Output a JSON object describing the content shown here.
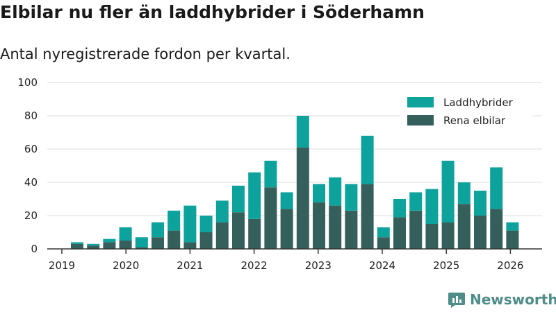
{
  "header": {
    "title": "Elbilar nu fler än laddhybrider i Söderhamn",
    "subtitle": "Antal nyregistrerade fordon per kvartal."
  },
  "brand": {
    "name": "Newsworthy"
  },
  "colors": {
    "laddhybrider": "#0ea29c",
    "rena_elbilar": "#355f5b",
    "axis": "#333333",
    "grid": "#dddddd",
    "brand": "#4f8d89"
  },
  "chart_data": {
    "type": "bar",
    "stacked": true,
    "title": "Elbilar nu fler än laddhybrider i Söderhamn",
    "subtitle": "Antal nyregistrerade fordon per kvartal.",
    "xlabel": "",
    "ylabel": "",
    "ylim": [
      0,
      100
    ],
    "yticks": [
      0,
      20,
      40,
      60,
      80,
      100
    ],
    "xticks": [
      "2019",
      "2020",
      "2021",
      "2022",
      "2023",
      "2024",
      "2025",
      "2026"
    ],
    "legend_position": "top-right",
    "categories": [
      "2019 Q2",
      "2019 Q3",
      "2019 Q4",
      "2020 Q1",
      "2020 Q2",
      "2020 Q3",
      "2020 Q4",
      "2021 Q1",
      "2021 Q2",
      "2021 Q3",
      "2021 Q4",
      "2022 Q1",
      "2022 Q2",
      "2022 Q3",
      "2022 Q4",
      "2023 Q1",
      "2023 Q2",
      "2023 Q3",
      "2023 Q4",
      "2024 Q1",
      "2024 Q2",
      "2024 Q3",
      "2024 Q4",
      "2025 Q1",
      "2025 Q2",
      "2025 Q3",
      "2025 Q4",
      "2026 Q1"
    ],
    "series": [
      {
        "name": "Rena elbilar",
        "values": [
          3,
          2,
          4,
          5,
          1,
          7,
          11,
          4,
          10,
          16,
          22,
          18,
          37,
          24,
          61,
          28,
          26,
          23,
          39,
          7,
          19,
          23,
          15,
          16,
          27,
          20,
          24,
          11
        ]
      },
      {
        "name": "Laddhybrider",
        "values": [
          1,
          1,
          2,
          8,
          6,
          9,
          12,
          22,
          10,
          13,
          16,
          28,
          16,
          10,
          19,
          11,
          17,
          16,
          29,
          6,
          11,
          11,
          21,
          37,
          13,
          15,
          25,
          5
        ]
      }
    ],
    "legend": [
      "Laddhybrider",
      "Rena elbilar"
    ]
  }
}
